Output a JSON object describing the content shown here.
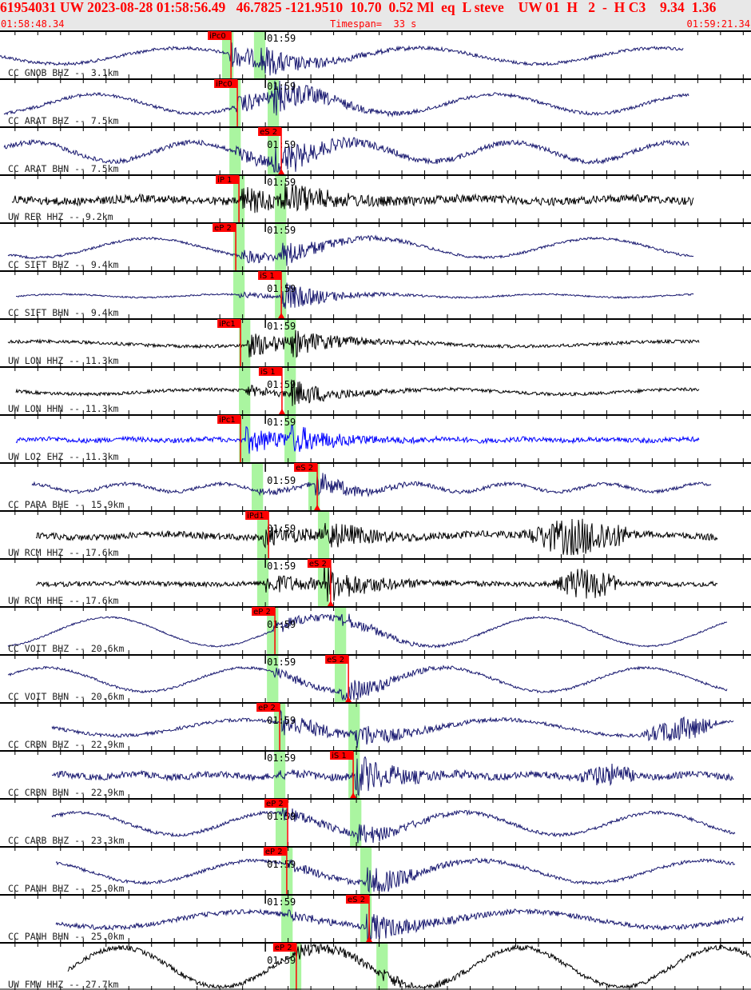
{
  "header": {
    "title": "61954031 UW 2023-08-28 01:58:56.49   46.7825 -121.9510  10.70  0.52 Ml  eq  L steve    UW 01  H   2  -  H C3    9.34  1.36",
    "start_time": "01:58:48.34",
    "timespan": "Timespan=  33 s",
    "end_time": "01:59:21.34"
  },
  "chart_data": {
    "type": "line",
    "x_axis": "time",
    "xlim": [
      "01:58:48.34",
      "01:59:21.34"
    ],
    "tick_interval_s": 1,
    "tick_label": "01:59",
    "colors": {
      "pick": "#ff0000",
      "window": "#aaf5a0",
      "navy": "#191970",
      "black": "#000000",
      "blue": "#0000ff"
    },
    "window_length_s": 0.5,
    "traces": [
      {
        "label": "CC GNOB BHZ -- 3.1km",
        "color": "#191970",
        "pick": {
          "label": "iPc0",
          "time": "01:58:58.49"
        },
        "p_window": "01:58:58.10",
        "s_window": "01:58:59.50"
      },
      {
        "label": "CC ARAT BHZ -- 7.5km",
        "color": "#191970",
        "pick": {
          "label": "iPc0",
          "time": "01:58:58.77"
        },
        "p_window": "01:58:58.42",
        "s_window": "01:59:00.10"
      },
      {
        "label": "CC ARAT BHN -- 7.5km",
        "color": "#191970",
        "pick": {
          "label": "eS 2",
          "time": "01:59:00.70"
        },
        "p_window": "01:58:58.42",
        "s_window": "01:59:00.10"
      },
      {
        "label": "UW RER HHZ -- 9.2km",
        "color": "#000000",
        "pick": {
          "label": "iP 1",
          "time": "01:58:58.84"
        },
        "p_window": "01:58:58.59",
        "s_window": "01:59:00.42"
      },
      {
        "label": "CC SIFT BHZ -- 9.4km",
        "color": "#191970",
        "pick": {
          "label": "eP 2",
          "time": "01:58:58.70"
        },
        "p_window": "01:58:58.59",
        "s_window": "01:59:00.42"
      },
      {
        "label": "CC SIFT BHN -- 9.4km",
        "color": "#191970",
        "pick": {
          "label": "iS 1",
          "time": "01:59:00.70"
        },
        "p_window": "01:58:58.59",
        "s_window": "01:59:00.42"
      },
      {
        "label": "UW LON HHZ -- 11.3km",
        "color": "#000000",
        "pick": {
          "label": "iPc1",
          "time": "01:58:58.91"
        },
        "p_window": "01:58:58.84",
        "s_window": "01:59:00.84"
      },
      {
        "label": "UW LON HHN -- 11.3km",
        "color": "#000000",
        "pick": {
          "label": "iS 1",
          "time": "01:59:00.73"
        },
        "p_window": "01:58:58.84",
        "s_window": "01:59:00.84"
      },
      {
        "label": "UW LO2 EHZ -- 11.3km",
        "color": "#0000ff",
        "pick": {
          "label": "iPc1",
          "time": "01:58:58.91"
        },
        "p_window": "01:58:58.84",
        "s_window": "01:59:00.84"
      },
      {
        "label": "CC PARA BHE -- 15.9km",
        "color": "#191970",
        "pick": {
          "label": "eS 2",
          "time": "01:59:02.28"
        },
        "p_window": "01:58:59.40",
        "s_window": "01:59:01.89"
      },
      {
        "label": "UW RCM HHZ -- 17.6km",
        "color": "#000000",
        "pick": {
          "label": "iPd1",
          "time": "01:59:00.14"
        },
        "p_window": "01:58:59.64",
        "s_window": "01:59:02.31"
      },
      {
        "label": "UW RCM HHE -- 17.6km",
        "color": "#000000",
        "pick": {
          "label": "eS 2",
          "time": "01:59:02.87"
        },
        "p_window": "01:58:59.64",
        "s_window": "01:59:02.31"
      },
      {
        "label": "CC VOIT BHZ -- 20.6km",
        "color": "#191970",
        "pick": {
          "label": "eP 2",
          "time": "01:59:00.42"
        },
        "p_window": "01:59:00.07",
        "s_window": "01:59:03.05"
      },
      {
        "label": "CC VOIT BHN -- 20.6km",
        "color": "#191970",
        "pick": {
          "label": "eS 2",
          "time": "01:59:03.65"
        },
        "p_window": "01:59:00.07",
        "s_window": "01:59:03.05"
      },
      {
        "label": "CC CRBN BHZ -- 22.9km",
        "color": "#191970",
        "pick": {
          "label": "eP 2",
          "time": "01:59:00.63"
        },
        "p_window": "01:59:00.38",
        "s_window": "01:59:03.65"
      },
      {
        "label": "CC CRBN BHN -- 22.9km",
        "color": "#191970",
        "pick": {
          "label": "iS 1",
          "time": "01:59:03.86"
        },
        "p_window": "01:59:00.38",
        "s_window": "01:59:03.65"
      },
      {
        "label": "CC CARB BHZ -- 23.3km",
        "color": "#191970",
        "pick": {
          "label": "eP 2",
          "time": "01:59:00.98"
        },
        "p_window": "01:59:00.45",
        "s_window": "01:59:03.72"
      },
      {
        "label": "CC PANH BHZ -- 25.0km",
        "color": "#191970",
        "pick": {
          "label": "eP 2",
          "time": "01:59:00.94"
        },
        "p_window": "01:59:00.70",
        "s_window": "01:59:04.17"
      },
      {
        "label": "CC PANH BHN -- 25.0km",
        "color": "#191970",
        "pick": {
          "label": "eS 2",
          "time": "01:59:04.56"
        },
        "p_window": "01:59:00.70",
        "s_window": "01:59:04.17"
      },
      {
        "label": "UW FMW HHZ -- 27.7km",
        "color": "#000000",
        "pick": {
          "label": "eP 2",
          "time": "01:59:01.36"
        },
        "p_window": "01:59:01.08",
        "s_window": "01:59:04.88"
      }
    ]
  }
}
